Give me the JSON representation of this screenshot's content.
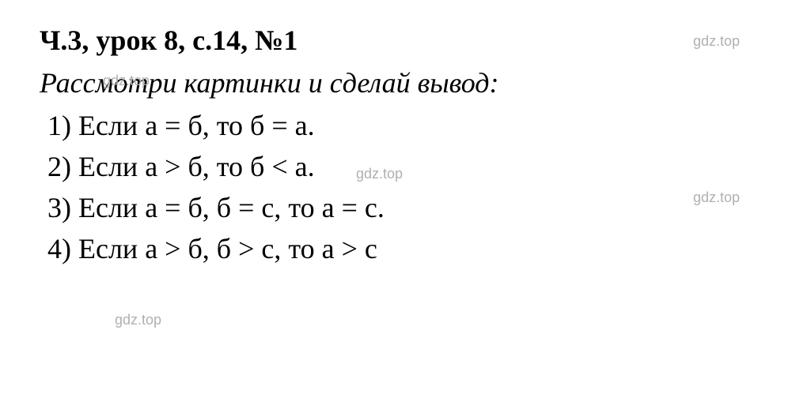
{
  "title": "Ч.3, урок 8, с.14, №1",
  "subtitle": "Рассмотри картинки и сделай вывод:",
  "items": [
    "1) Если а = б, то б = а.",
    "2) Если а > б, то б < а.",
    "3) Если а = б, б = с, то а = с.",
    "4) Если а > б, б > с, то а > с"
  ],
  "watermark": "gdz.top",
  "styling": {
    "background_color": "#ffffff",
    "text_color": "#000000",
    "watermark_color": "#b0b0b0",
    "title_fontsize": 36,
    "title_fontweight": "bold",
    "subtitle_fontsize": 36,
    "subtitle_fontstyle": "italic",
    "item_fontsize": 36,
    "font_family": "Georgia, Times New Roman, serif",
    "watermark_fontsize": 18,
    "watermark_font_family": "Arial, sans-serif"
  }
}
